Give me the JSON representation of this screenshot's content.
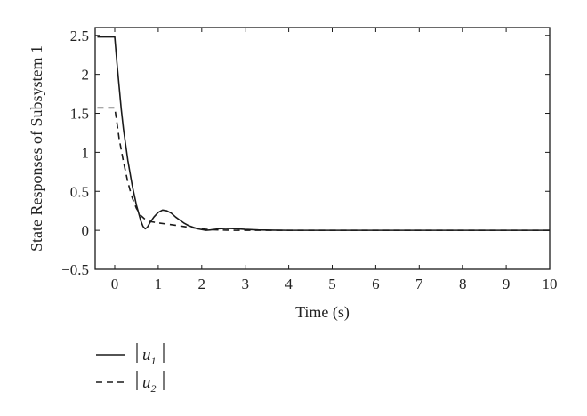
{
  "chart_data": {
    "type": "line",
    "xlabel": "Time (s)",
    "ylabel": "State Responses of Subsystem 1",
    "xlim": [
      -0.45,
      10
    ],
    "ylim": [
      -0.5,
      2.6
    ],
    "xticks": [
      0,
      1,
      2,
      3,
      4,
      5,
      6,
      7,
      8,
      9,
      10
    ],
    "xtick_labels": [
      "0",
      "1",
      "2",
      "3",
      "4",
      "5",
      "6",
      "7",
      "8",
      "9",
      "10"
    ],
    "yticks": [
      -0.5,
      0,
      0.5,
      1,
      1.5,
      2,
      2.5
    ],
    "ytick_labels": [
      "−0.5",
      "0",
      "0.5",
      "1",
      "1.5",
      "2",
      "2.5"
    ],
    "grid": false,
    "legend_position": "below-left",
    "series": [
      {
        "legend_main": "u",
        "legend_sub": "1",
        "line_style": "solid",
        "color": "#1a1a1a",
        "x": [
          -0.4,
          0.0,
          0.05,
          0.1,
          0.15,
          0.2,
          0.3,
          0.4,
          0.5,
          0.6,
          0.65,
          0.7,
          0.75,
          0.8,
          0.9,
          1.0,
          1.1,
          1.2,
          1.3,
          1.4,
          1.5,
          1.6,
          1.7,
          1.8,
          1.9,
          2.0,
          2.1,
          2.2,
          2.4,
          2.6,
          2.8,
          3.0,
          3.3,
          3.6,
          4.0,
          5.0,
          6.0,
          7.0,
          8.0,
          9.0,
          10.0
        ],
        "y": [
          2.48,
          2.48,
          2.15,
          1.85,
          1.55,
          1.3,
          0.9,
          0.58,
          0.32,
          0.12,
          0.05,
          0.02,
          0.04,
          0.09,
          0.17,
          0.23,
          0.26,
          0.25,
          0.22,
          0.17,
          0.13,
          0.09,
          0.06,
          0.04,
          0.02,
          0.01,
          0.0,
          0.005,
          0.02,
          0.025,
          0.02,
          0.012,
          0.005,
          0.002,
          0.0,
          0.0,
          0.0,
          0.0,
          0.0,
          0.0,
          0.0
        ]
      },
      {
        "legend_main": "u",
        "legend_sub": "2",
        "line_style": "dashed",
        "color": "#1a1a1a",
        "x": [
          -0.4,
          0.0,
          0.05,
          0.1,
          0.2,
          0.3,
          0.4,
          0.5,
          0.6,
          0.7,
          0.8,
          1.0,
          1.2,
          1.4,
          1.6,
          1.8,
          2.0,
          2.2,
          2.5,
          2.8,
          3.0,
          3.5,
          4.0,
          5.0,
          6.0,
          7.0,
          8.0,
          9.0,
          10.0
        ],
        "y": [
          1.57,
          1.57,
          1.38,
          1.18,
          0.88,
          0.62,
          0.42,
          0.28,
          0.19,
          0.14,
          0.115,
          0.095,
          0.08,
          0.065,
          0.048,
          0.032,
          0.018,
          0.008,
          0.003,
          0.0,
          0.0,
          0.0,
          0.0,
          0.0,
          0.0,
          0.0,
          0.0,
          0.0,
          0.0
        ]
      }
    ]
  }
}
